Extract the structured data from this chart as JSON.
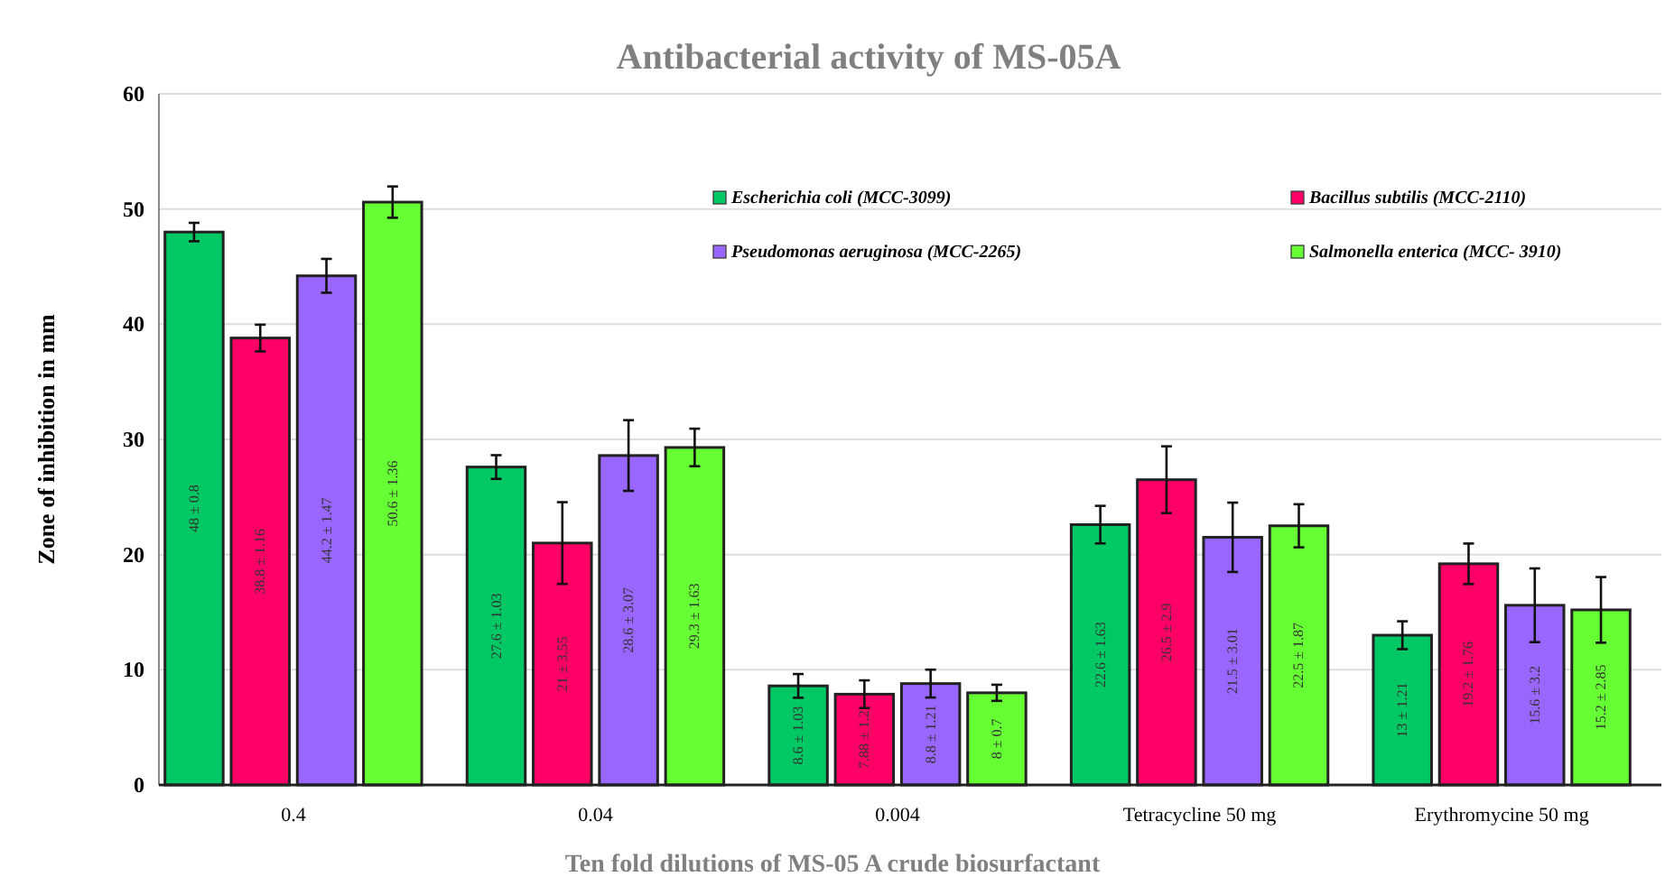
{
  "chart_data": {
    "type": "bar",
    "title": "Antibacterial activity of MS-05A",
    "xlabel": "Ten fold dilutions of MS-05 A crude biosurfactant",
    "ylabel": "Zone of inhibition in mm",
    "categories": [
      "0.4",
      "0.04",
      "0.004",
      "Tetracycline 50 mg",
      "Erythromycine 50 mg"
    ],
    "series": [
      {
        "name": "Escherichia coli (MCC-3099)",
        "color": "#00c864",
        "values": [
          48,
          27.6,
          8.6,
          22.6,
          13
        ],
        "errors": [
          0.8,
          1.03,
          1.03,
          1.63,
          1.21
        ],
        "value_labels": [
          "48 ± 0.8",
          "27.6 ± 1.03",
          "8.6 ± 1.03",
          "22.6 ± 1.63",
          "13 ± 1.21"
        ]
      },
      {
        "name": "Bacillus subtilis (MCC-2110)",
        "color": "#ff0066",
        "values": [
          38.8,
          21,
          7.88,
          26.5,
          19.2
        ],
        "errors": [
          1.16,
          3.55,
          1.2,
          2.9,
          1.76
        ],
        "value_labels": [
          "38.8 ± 1.16",
          "21 ± 3.55",
          "7.88 ± 1.2",
          "26.5 ± 2.9",
          "19.2 ± 1.76"
        ]
      },
      {
        "name": "Pseudomonas aeruginosa (MCC-2265)",
        "color": "#9966ff",
        "values": [
          44.2,
          28.6,
          8.8,
          21.5,
          15.6
        ],
        "errors": [
          1.47,
          3.07,
          1.21,
          3.01,
          3.2
        ],
        "value_labels": [
          "44.2 ± 1.47",
          "28.6 ± 3.07",
          "8.8 ± 1.21",
          "21.5 ± 3.01",
          "15.6 ± 3.2"
        ]
      },
      {
        "name": "Salmonella enterica  (MCC- 3910)",
        "color": "#66ff33",
        "values": [
          50.6,
          29.3,
          8,
          22.5,
          15.2
        ],
        "errors": [
          1.36,
          1.63,
          0.7,
          1.87,
          2.85
        ],
        "value_labels": [
          "50.6 ± 1.36",
          "29.3 ± 1.63",
          "8 ± 0.7",
          "22.5 ± 1.87",
          "15.2 ± 2.85"
        ]
      }
    ],
    "ylim": [
      0,
      60
    ],
    "yticks": [
      0,
      10,
      20,
      30,
      40,
      50,
      60
    ],
    "grid": "y",
    "legend": "top right"
  }
}
